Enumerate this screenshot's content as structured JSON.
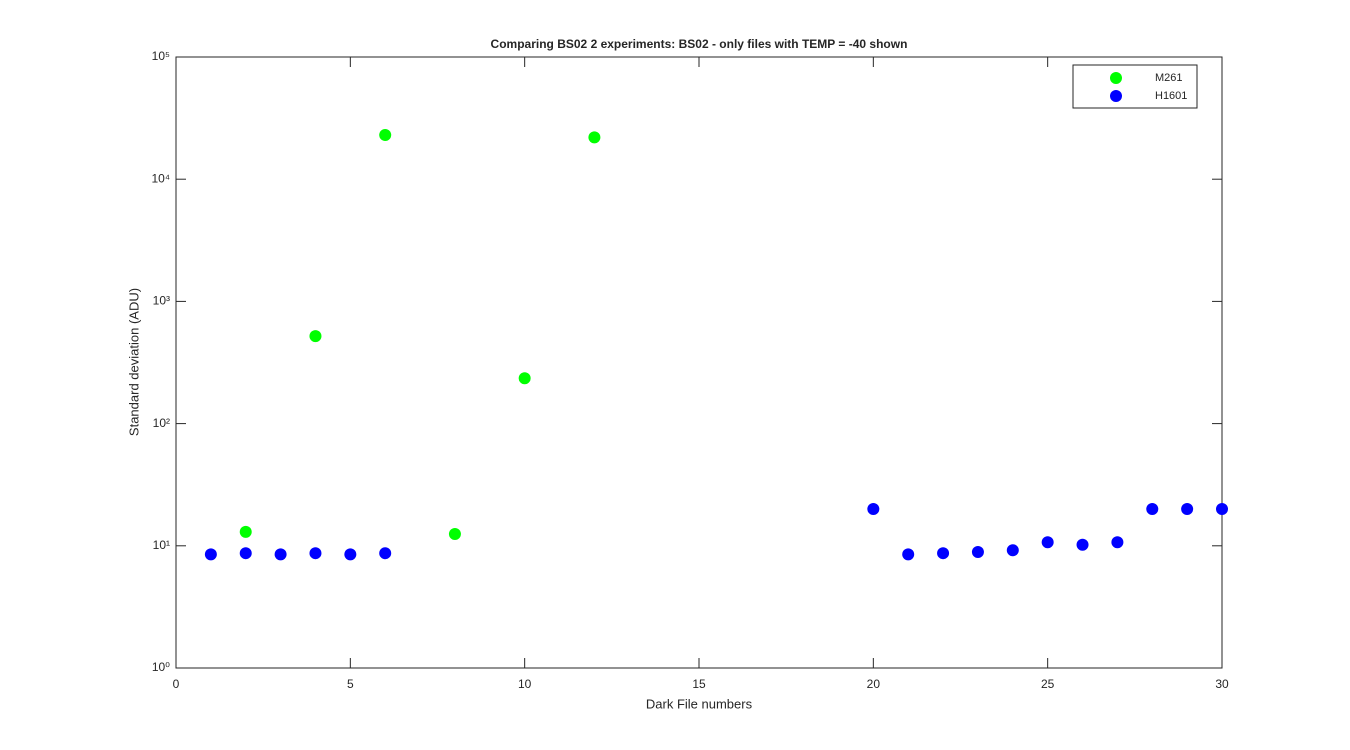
{
  "chart_data": {
    "type": "scatter",
    "title": "Comparing BS02 2 experiments: BS02 - only files with TEMP = -40 shown",
    "x_label": "Dark File numbers",
    "y_label": "Standard deviation (ADU)",
    "y_scale": "log",
    "xlim": [
      0,
      30
    ],
    "xticks": [
      0,
      5,
      10,
      15,
      20,
      25,
      30
    ],
    "ylim": [
      1,
      100000
    ],
    "yticks": [
      {
        "value": 1,
        "label": "10⁰"
      },
      {
        "value": 10,
        "label": "10¹"
      },
      {
        "value": 100,
        "label": "10²"
      },
      {
        "value": 1000,
        "label": "10³"
      },
      {
        "value": 10000,
        "label": "10⁴"
      },
      {
        "value": 100000,
        "label": "10⁵"
      }
    ],
    "legend": "northeast",
    "series": [
      {
        "name": "M261",
        "color": "#00ff00",
        "x": [
          2,
          4,
          6,
          8,
          10,
          12
        ],
        "values": [
          13,
          520,
          23000,
          12.5,
          235,
          22000
        ]
      },
      {
        "name": "H1601",
        "color": "#0000ff",
        "x": [
          1,
          2,
          3,
          4,
          5,
          6,
          20,
          21,
          22,
          23,
          24,
          25,
          26,
          27,
          28,
          29,
          30
        ],
        "values": [
          8.5,
          8.7,
          8.5,
          8.7,
          8.5,
          8.7,
          20,
          8.5,
          8.7,
          8.9,
          9.2,
          10.7,
          10.2,
          10.7,
          20,
          20,
          20
        ]
      }
    ]
  }
}
